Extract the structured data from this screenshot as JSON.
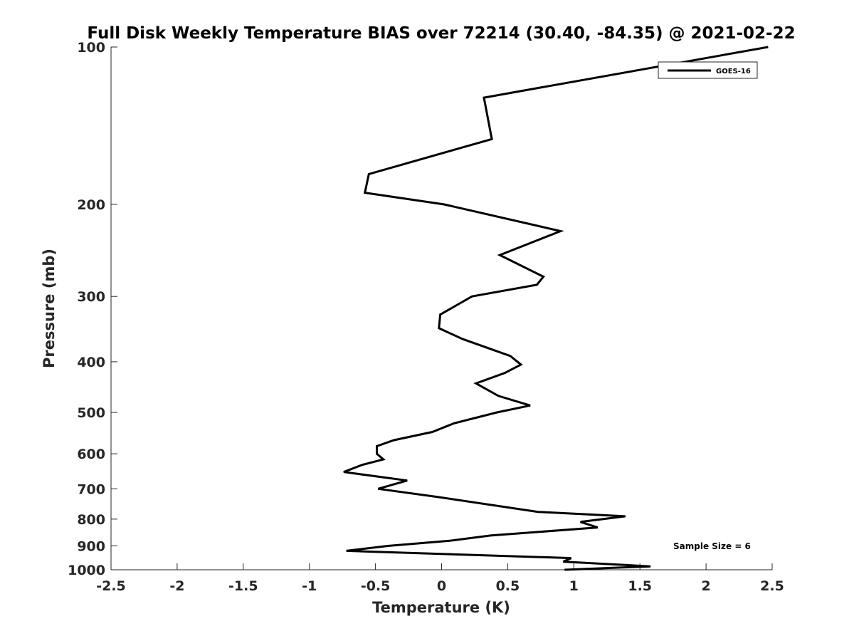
{
  "chart_data": {
    "type": "line",
    "title": "Full Disk Weekly Temperature BIAS over 72214 (30.40, -84.35) @ 2021-02-22",
    "xlabel": "Temperature (K)",
    "ylabel": "Pressure (mb)",
    "xlim": [
      -2.5,
      2.5
    ],
    "ylim": [
      100,
      1000
    ],
    "yscale": "log",
    "y_reversed": true,
    "grid": false,
    "legend_position": "top-right",
    "x_ticks": [
      -2.5,
      -2,
      -1.5,
      -1,
      -0.5,
      0,
      0.5,
      1,
      1.5,
      2,
      2.5
    ],
    "x_tick_labels": [
      "-2.5",
      "-2",
      "-1.5",
      "-1",
      "-0.5",
      "0",
      "0.5",
      "1",
      "1.5",
      "2",
      "2.5"
    ],
    "y_ticks": [
      100,
      200,
      300,
      400,
      500,
      600,
      700,
      800,
      900,
      1000
    ],
    "y_tick_labels": [
      "100",
      "200",
      "300",
      "400",
      "500",
      "600",
      "700",
      "800",
      "900",
      "1000"
    ],
    "series": [
      {
        "name": "GOES-16",
        "color": "#000000",
        "points": [
          {
            "x": 2.47,
            "y": 100
          },
          {
            "x": 0.32,
            "y": 125
          },
          {
            "x": 0.38,
            "y": 150
          },
          {
            "x": -0.55,
            "y": 175
          },
          {
            "x": -0.58,
            "y": 190
          },
          {
            "x": 0.02,
            "y": 200
          },
          {
            "x": 0.9,
            "y": 225
          },
          {
            "x": 0.44,
            "y": 250
          },
          {
            "x": 0.77,
            "y": 275
          },
          {
            "x": 0.72,
            "y": 285
          },
          {
            "x": 0.23,
            "y": 300
          },
          {
            "x": -0.01,
            "y": 325
          },
          {
            "x": -0.02,
            "y": 345
          },
          {
            "x": 0.16,
            "y": 362
          },
          {
            "x": 0.52,
            "y": 390
          },
          {
            "x": 0.6,
            "y": 405
          },
          {
            "x": 0.48,
            "y": 420
          },
          {
            "x": 0.26,
            "y": 440
          },
          {
            "x": 0.43,
            "y": 465
          },
          {
            "x": 0.67,
            "y": 485
          },
          {
            "x": 0.42,
            "y": 500
          },
          {
            "x": 0.09,
            "y": 525
          },
          {
            "x": -0.07,
            "y": 545
          },
          {
            "x": -0.36,
            "y": 565
          },
          {
            "x": -0.49,
            "y": 580
          },
          {
            "x": -0.49,
            "y": 600
          },
          {
            "x": -0.44,
            "y": 615
          },
          {
            "x": -0.6,
            "y": 630
          },
          {
            "x": -0.74,
            "y": 650
          },
          {
            "x": -0.26,
            "y": 675
          },
          {
            "x": -0.48,
            "y": 700
          },
          {
            "x": -0.04,
            "y": 725
          },
          {
            "x": 0.73,
            "y": 775
          },
          {
            "x": 1.39,
            "y": 790
          },
          {
            "x": 1.05,
            "y": 810
          },
          {
            "x": 1.18,
            "y": 830
          },
          {
            "x": 0.37,
            "y": 860
          },
          {
            "x": 0.06,
            "y": 880
          },
          {
            "x": -0.4,
            "y": 900
          },
          {
            "x": -0.72,
            "y": 920
          },
          {
            "x": 0.98,
            "y": 950
          },
          {
            "x": 0.92,
            "y": 965
          },
          {
            "x": 1.58,
            "y": 985
          },
          {
            "x": 0.93,
            "y": 1000
          }
        ]
      }
    ],
    "annotations": [
      {
        "text": "Sample Size = 6",
        "position": "bottom-right"
      }
    ]
  }
}
